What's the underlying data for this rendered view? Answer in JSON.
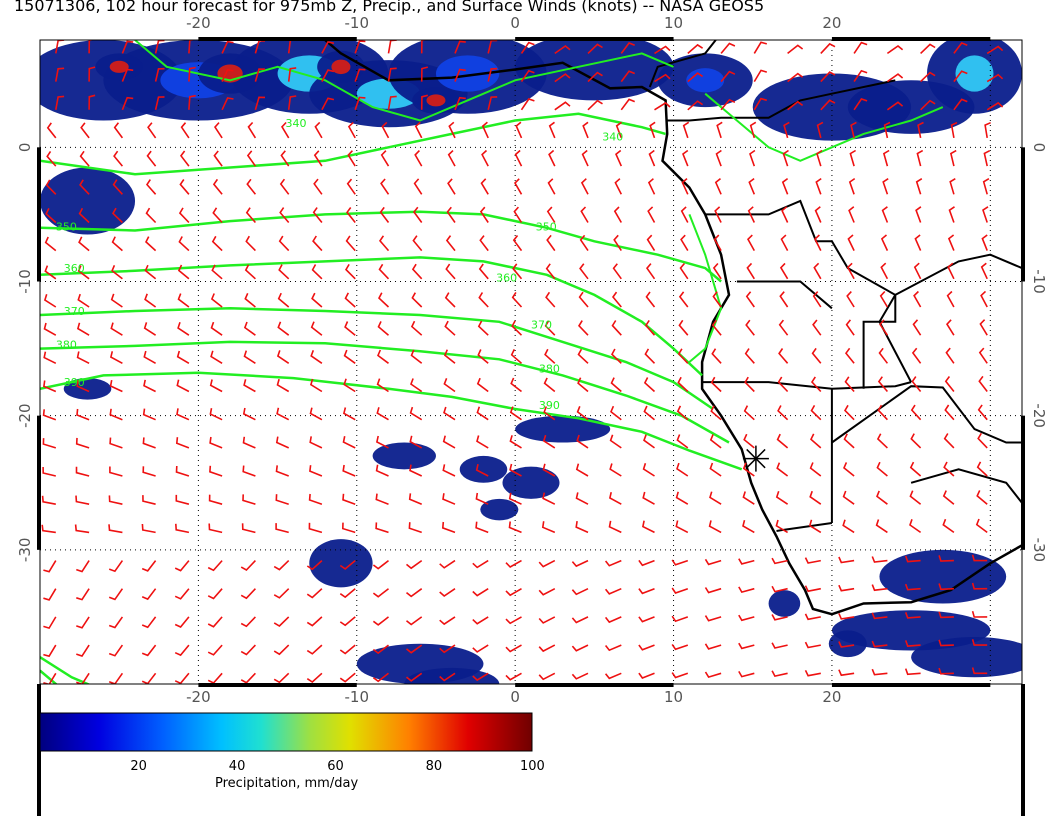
{
  "title": "15071306, 102 hour forecast for 975mb Z, Precip., and Surface Winds (knots) -- NASA GEOS5",
  "map": {
    "lon_range": [
      -30,
      32
    ],
    "lat_range": [
      -40,
      8
    ],
    "lon_ticks": [
      "-20",
      "-10",
      "0",
      "10",
      "20"
    ],
    "lat_ticks": [
      "0",
      "-10",
      "-20",
      "-30"
    ],
    "grid": "dotted",
    "marker": "star-marker",
    "colors": {
      "land_outline": "#000000",
      "contours": "#22ee22",
      "wind_barbs": "#ee1111",
      "precip_low": "#0a1e8c"
    }
  },
  "contours": {
    "labels": [
      "340",
      "340",
      "350",
      "350",
      "360",
      "360",
      "370",
      "370",
      "380",
      "380",
      "390",
      "390"
    ]
  },
  "colorbar": {
    "min": 0,
    "max": 100,
    "ticks": [
      "20",
      "40",
      "60",
      "80",
      "100"
    ],
    "label": "Precipitation, mm/day"
  }
}
